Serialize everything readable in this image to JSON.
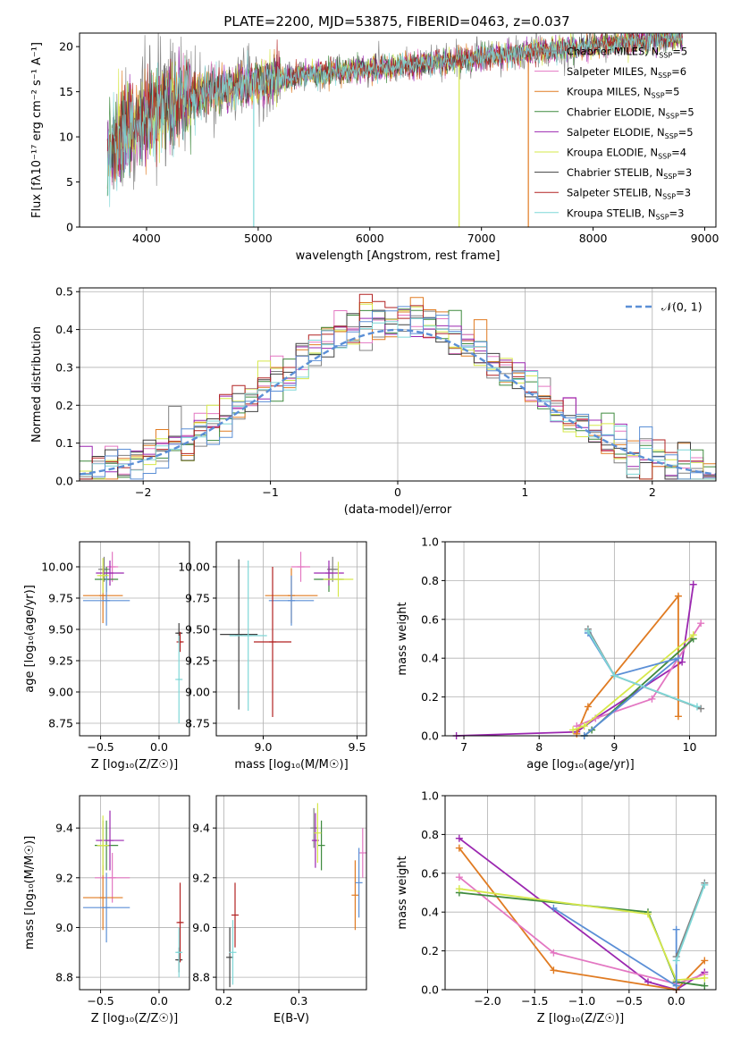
{
  "title": "PLATE=2200, MJD=53875, FIBERID=0463, z=0.037",
  "colors": {
    "chabrier_miles": "#808080",
    "salpeter_miles": "#e377c2",
    "kroupa_miles": "#e07b22",
    "chabrier_elodie": "#3f8a3f",
    "salpeter_elodie": "#9b27b0",
    "kroupa_elodie": "#d6e84a",
    "chabrier_stelib": "#404040",
    "salpeter_stelib": "#b22222",
    "kroupa_stelib": "#7fd7d7",
    "normal": "#5b8fd6"
  },
  "chart_data": [
    {
      "id": "spectrum",
      "type": "line",
      "xlabel": "wavelength [Angstrom, rest frame]",
      "ylabel": "Flux [fλ10⁻¹⁷ erg cm⁻² s⁻¹ A⁻¹]",
      "xlim": [
        3400,
        9100
      ],
      "ylim": [
        0,
        21.5
      ],
      "xticks": [
        4000,
        5000,
        6000,
        7000,
        8000,
        9000
      ],
      "yticks": [
        0,
        5,
        10,
        15,
        20
      ],
      "continuum": {
        "x": [
          3650,
          3800,
          4000,
          4300,
          4600,
          5000,
          5500,
          6000,
          6500,
          7000,
          7500,
          8000,
          8500,
          8800
        ],
        "y": [
          8.5,
          10.5,
          12.5,
          14.0,
          15.2,
          16.0,
          17.0,
          17.5,
          18.2,
          18.8,
          19.5,
          20.0,
          20.8,
          21.0
        ]
      },
      "series": [
        {
          "name": "Chabrier MILES, N",
          "n": "5",
          "color": "#808080"
        },
        {
          "name": "Salpeter MILES, N",
          "n": "6",
          "color": "#e377c2"
        },
        {
          "name": "Kroupa MILES, N",
          "n": "5",
          "color": "#e07b22"
        },
        {
          "name": "Chabrier ELODIE, N",
          "n": "5",
          "color": "#3f8a3f"
        },
        {
          "name": "Salpeter ELODIE, N",
          "n": "5",
          "color": "#9b27b0"
        },
        {
          "name": "Kroupa ELODIE, N",
          "n": "4",
          "color": "#d6e84a"
        },
        {
          "name": "Chabrier STELIB, N",
          "n": "3",
          "color": "#404040"
        },
        {
          "name": "Salpeter STELIB, N",
          "n": "3",
          "color": "#b22222"
        },
        {
          "name": "Kroupa STELIB, N",
          "n": "3",
          "color": "#7fd7d7"
        }
      ],
      "legend_sub": "SSP",
      "legend": "top-right"
    },
    {
      "id": "residuals",
      "type": "line",
      "xlabel": "(data-model)/error",
      "ylabel": "Normed distribution",
      "xlim": [
        -2.5,
        2.5
      ],
      "ylim": [
        0,
        0.51
      ],
      "xticks": [
        -2,
        -1,
        0,
        1,
        2
      ],
      "yticks": [
        0.0,
        0.1,
        0.2,
        0.3,
        0.4,
        0.5
      ],
      "normal_label": "𝒩(0, 1)",
      "bin_width": 0.1,
      "grid": true,
      "legend": "top-right"
    },
    {
      "id": "age_vs_Z",
      "type": "scatter",
      "xlabel": "Z [log₁₀(Z/Z☉)]",
      "ylabel": "age  [log₁₀(age/yr)]",
      "xlim": [
        -0.68,
        0.26
      ],
      "ylim": [
        8.65,
        10.2
      ],
      "xticks": [
        -0.5,
        0.0
      ],
      "yticks": [
        8.75,
        9.0,
        9.25,
        9.5,
        9.75,
        10.0
      ],
      "points": [
        {
          "x": -0.47,
          "y": 9.98,
          "ex": 0.05,
          "ey": 0.1,
          "c": "#808080"
        },
        {
          "x": -0.4,
          "y": 10.0,
          "ex": 0.05,
          "ey": 0.12,
          "c": "#e377c2"
        },
        {
          "x": -0.48,
          "y": 9.77,
          "ex": 0.17,
          "ey": 0.22,
          "c": "#e07b22"
        },
        {
          "x": -0.45,
          "y": 9.9,
          "ex": 0.1,
          "ey": 0.1,
          "c": "#3f8a3f"
        },
        {
          "x": -0.42,
          "y": 9.95,
          "ex": 0.12,
          "ey": 0.1,
          "c": "#9b27b0"
        },
        {
          "x": -0.48,
          "y": 9.93,
          "ex": 0.05,
          "ey": 0.14,
          "c": "#d6e84a"
        },
        {
          "x": -0.45,
          "y": 9.73,
          "ex": 0.2,
          "ey": 0.2,
          "c": "#5b8fd6"
        },
        {
          "x": 0.17,
          "y": 9.47,
          "ex": 0.02,
          "ey": 0.08,
          "c": "#404040"
        },
        {
          "x": 0.18,
          "y": 9.4,
          "ex": 0.02,
          "ey": 0.08,
          "c": "#b22222"
        },
        {
          "x": 0.17,
          "y": 9.1,
          "ex": 0.01,
          "ey": 0.35,
          "c": "#7fd7d7"
        }
      ]
    },
    {
      "id": "age_vs_mass",
      "type": "scatter",
      "xlabel": "mass [log₁₀(M/M☉)]",
      "ylabel": "",
      "xlim": [
        8.75,
        9.55
      ],
      "ylim": [
        8.65,
        10.2
      ],
      "xticks": [
        9.0,
        9.5
      ],
      "yticks": [
        8.75,
        9.0,
        9.25,
        9.5,
        9.75,
        10.0
      ],
      "points": [
        {
          "x": 9.37,
          "y": 9.98,
          "ex": 0.03,
          "ey": 0.1,
          "c": "#808080"
        },
        {
          "x": 9.2,
          "y": 10.0,
          "ex": 0.05,
          "ey": 0.12,
          "c": "#e377c2"
        },
        {
          "x": 9.15,
          "y": 9.77,
          "ex": 0.14,
          "ey": 0.22,
          "c": "#e07b22"
        },
        {
          "x": 9.35,
          "y": 9.9,
          "ex": 0.08,
          "ey": 0.1,
          "c": "#3f8a3f"
        },
        {
          "x": 9.35,
          "y": 9.95,
          "ex": 0.08,
          "ey": 0.1,
          "c": "#9b27b0"
        },
        {
          "x": 9.4,
          "y": 9.9,
          "ex": 0.08,
          "ey": 0.14,
          "c": "#d6e84a"
        },
        {
          "x": 9.15,
          "y": 9.73,
          "ex": 0.12,
          "ey": 0.2,
          "c": "#5b8fd6"
        },
        {
          "x": 8.87,
          "y": 9.46,
          "ex": 0.1,
          "ey": 0.6,
          "c": "#404040"
        },
        {
          "x": 9.05,
          "y": 9.4,
          "ex": 0.1,
          "ey": 0.6,
          "c": "#b22222"
        },
        {
          "x": 8.92,
          "y": 9.45,
          "ex": 0.1,
          "ey": 0.6,
          "c": "#7fd7d7"
        }
      ]
    },
    {
      "id": "weight_vs_age",
      "type": "line",
      "xlabel": "age  [log₁₀(age/yr)]",
      "ylabel": "mass weight",
      "xlim": [
        6.75,
        10.35
      ],
      "ylim": [
        0,
        1.0
      ],
      "xticks": [
        7,
        8,
        9,
        10
      ],
      "yticks": [
        0.0,
        0.2,
        0.4,
        0.6,
        0.8,
        1.0
      ],
      "series": [
        {
          "c": "#9b27b0",
          "x": [
            6.9,
            8.5,
            8.75,
            9.9,
            10.05
          ],
          "y": [
            0.0,
            0.02,
            0.09,
            0.38,
            0.78
          ]
        },
        {
          "c": "#e07b22",
          "x": [
            8.5,
            8.65,
            9.85,
            9.85
          ],
          "y": [
            0.01,
            0.15,
            0.72,
            0.1
          ]
        },
        {
          "c": "#e377c2",
          "x": [
            8.5,
            8.75,
            9.5,
            10.15
          ],
          "y": [
            0.05,
            0.09,
            0.19,
            0.58
          ]
        },
        {
          "c": "#3f8a3f",
          "x": [
            8.6,
            8.7,
            10.05
          ],
          "y": [
            0.0,
            0.03,
            0.5
          ]
        },
        {
          "c": "#d6e84a",
          "x": [
            8.45,
            8.6,
            10.05
          ],
          "y": [
            0.03,
            0.05,
            0.52
          ]
        },
        {
          "c": "#5b8fd6",
          "x": [
            8.6,
            9.85,
            9.0,
            8.65
          ],
          "y": [
            0.0,
            0.4,
            0.31,
            0.53
          ]
        },
        {
          "c": "#808080",
          "x": [
            8.65,
            9.0,
            10.15
          ],
          "y": [
            0.55,
            0.31,
            0.14
          ]
        },
        {
          "c": "#7fd7d7",
          "x": [
            8.65,
            9.0,
            10.1
          ],
          "y": [
            0.54,
            0.31,
            0.15
          ]
        }
      ]
    },
    {
      "id": "mass_vs_Z",
      "type": "scatter",
      "xlabel": "Z [log₁₀(Z/Z☉)]",
      "ylabel": "mass [log₁₀(M/M☉)]",
      "xlim": [
        -0.68,
        0.26
      ],
      "ylim": [
        8.75,
        9.53
      ],
      "xticks": [
        -0.5,
        0.0
      ],
      "yticks": [
        8.8,
        9.0,
        9.2,
        9.4
      ],
      "points": [
        {
          "x": -0.48,
          "y": 9.33,
          "ex": 0.05,
          "ey": 0.1,
          "c": "#808080"
        },
        {
          "x": -0.4,
          "y": 9.2,
          "ex": 0.15,
          "ey": 0.1,
          "c": "#e377c2"
        },
        {
          "x": -0.48,
          "y": 9.12,
          "ex": 0.17,
          "ey": 0.13,
          "c": "#e07b22"
        },
        {
          "x": -0.45,
          "y": 9.33,
          "ex": 0.1,
          "ey": 0.1,
          "c": "#3f8a3f"
        },
        {
          "x": -0.42,
          "y": 9.35,
          "ex": 0.12,
          "ey": 0.12,
          "c": "#9b27b0"
        },
        {
          "x": -0.48,
          "y": 9.33,
          "ex": 0.05,
          "ey": 0.12,
          "c": "#d6e84a"
        },
        {
          "x": -0.45,
          "y": 9.08,
          "ex": 0.2,
          "ey": 0.14,
          "c": "#5b8fd6"
        },
        {
          "x": 0.17,
          "y": 8.87,
          "ex": 0.02,
          "ey": 0.05,
          "c": "#404040"
        },
        {
          "x": 0.18,
          "y": 9.02,
          "ex": 0.02,
          "ey": 0.16,
          "c": "#b22222"
        },
        {
          "x": 0.17,
          "y": 8.9,
          "ex": 0.02,
          "ey": 0.1,
          "c": "#7fd7d7"
        }
      ]
    },
    {
      "id": "mass_vs_EBV",
      "type": "scatter",
      "xlabel": "E(B-V)",
      "ylabel": "",
      "xlim": [
        0.19,
        0.39
      ],
      "ylim": [
        8.75,
        9.53
      ],
      "xticks": [
        0.2,
        0.3
      ],
      "yticks": [
        8.8,
        9.0,
        9.2,
        9.4
      ],
      "points": [
        {
          "x": 0.32,
          "y": 9.4,
          "ey": 0.08,
          "c": "#808080"
        },
        {
          "x": 0.385,
          "y": 9.3,
          "ey": 0.1,
          "c": "#e377c2"
        },
        {
          "x": 0.375,
          "y": 9.13,
          "ey": 0.14,
          "c": "#e07b22"
        },
        {
          "x": 0.33,
          "y": 9.33,
          "ey": 0.1,
          "c": "#3f8a3f"
        },
        {
          "x": 0.322,
          "y": 9.35,
          "ey": 0.11,
          "c": "#9b27b0"
        },
        {
          "x": 0.325,
          "y": 9.38,
          "ey": 0.12,
          "c": "#d6e84a"
        },
        {
          "x": 0.38,
          "y": 9.18,
          "ey": 0.14,
          "c": "#5b8fd6"
        },
        {
          "x": 0.208,
          "y": 8.88,
          "ey": 0.12,
          "c": "#404040"
        },
        {
          "x": 0.215,
          "y": 9.05,
          "ey": 0.13,
          "c": "#b22222"
        },
        {
          "x": 0.212,
          "y": 8.9,
          "ey": 0.13,
          "c": "#7fd7d7"
        }
      ]
    },
    {
      "id": "weight_vs_Z",
      "type": "line",
      "xlabel": "Z [log₁₀(Z/Z☉)]",
      "ylabel": "mass weight",
      "xlim": [
        -2.45,
        0.42
      ],
      "ylim": [
        0,
        1.0
      ],
      "xticks": [
        -2.0,
        -1.5,
        -1.0,
        -0.5,
        0.0
      ],
      "yticks": [
        0.0,
        0.2,
        0.4,
        0.6,
        0.8,
        1.0
      ],
      "series": [
        {
          "c": "#9b27b0",
          "x": [
            -2.3,
            -0.3,
            0.0,
            0.3
          ],
          "y": [
            0.78,
            0.04,
            0.0,
            0.09
          ]
        },
        {
          "c": "#e07b22",
          "x": [
            -2.3,
            -1.3,
            0.0,
            0.3
          ],
          "y": [
            0.73,
            0.1,
            0.0,
            0.15
          ]
        },
        {
          "c": "#e377c2",
          "x": [
            -2.3,
            -1.3,
            0.0,
            0.3
          ],
          "y": [
            0.58,
            0.19,
            0.03,
            0.08
          ]
        },
        {
          "c": "#3f8a3f",
          "x": [
            -2.3,
            -0.3,
            0.0,
            0.3
          ],
          "y": [
            0.5,
            0.4,
            0.04,
            0.02
          ]
        },
        {
          "c": "#d6e84a",
          "x": [
            -2.3,
            -0.3,
            0.0,
            0.3
          ],
          "y": [
            0.52,
            0.39,
            0.05,
            0.06
          ]
        },
        {
          "c": "#5b8fd6",
          "x": [
            -1.3,
            0.0,
            0.0
          ],
          "y": [
            0.42,
            0.02,
            0.31
          ]
        },
        {
          "c": "#808080",
          "x": [
            0.0,
            0.3
          ],
          "y": [
            0.17,
            0.55
          ]
        },
        {
          "c": "#7fd7d7",
          "x": [
            0.0,
            0.3
          ],
          "y": [
            0.15,
            0.54
          ]
        }
      ]
    }
  ]
}
